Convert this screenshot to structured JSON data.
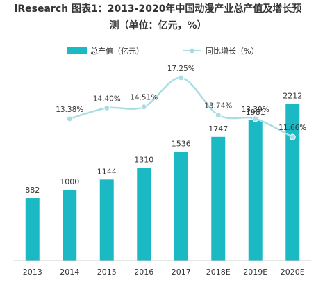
{
  "title_line1": "iResearch 图表1：2013-2020年中国动漫产业总产值及增长预",
  "title_line2": "测（单位：亿元，%）",
  "chart_data": {
    "type": "bar",
    "categories": [
      "2013",
      "2014",
      "2015",
      "2016",
      "2017",
      "2018E",
      "2019E",
      "2020E"
    ],
    "series": [
      {
        "name": "总产值（亿元）",
        "type": "bar",
        "values": [
          882,
          1000,
          1144,
          1310,
          1536,
          1747,
          1981,
          2212
        ],
        "labels": [
          "882",
          "1000",
          "1144",
          "1310",
          "1536",
          "1747",
          "1981",
          "2212"
        ],
        "color": "#1BB9C3"
      },
      {
        "name": "同比增长（%）",
        "type": "line",
        "values": [
          null,
          13.38,
          14.4,
          14.51,
          17.25,
          13.74,
          13.39,
          11.66
        ],
        "labels": [
          "",
          "13.38%",
          "14.40%",
          "14.51%",
          "17.25%",
          "13.74%",
          "13.39%",
          "11.66%"
        ],
        "color": "#A9DDE4"
      }
    ],
    "ylim_bar": [
      0,
      2500
    ],
    "ylim_line": [
      0,
      20
    ],
    "legend_position": "top",
    "grid": false
  }
}
